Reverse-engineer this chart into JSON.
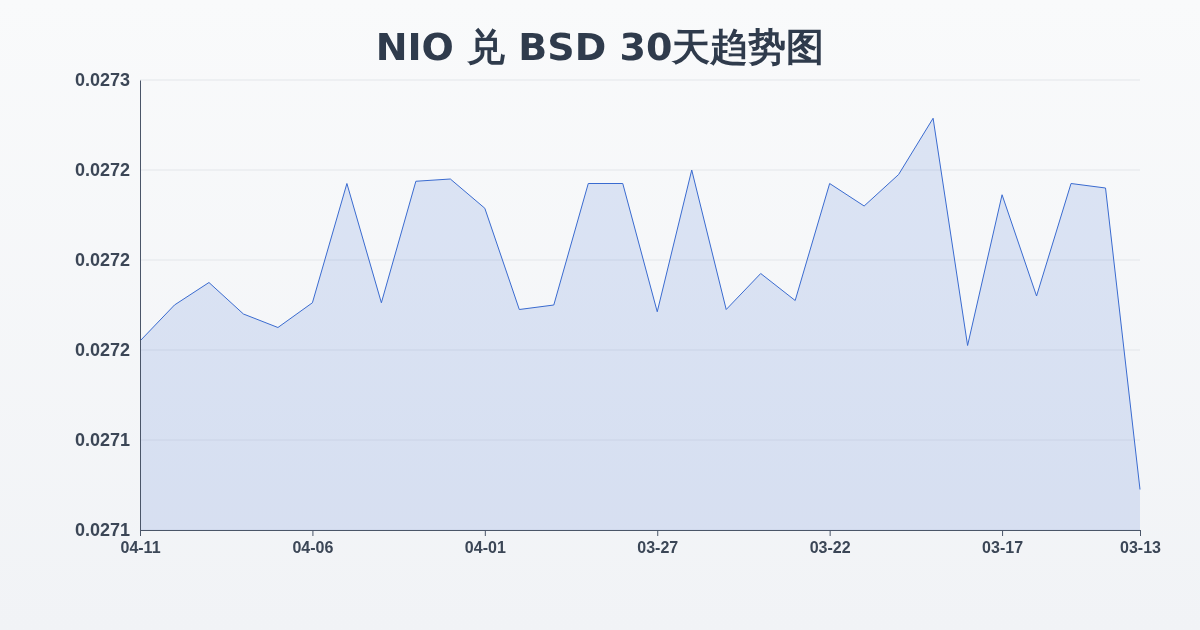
{
  "chart_data": {
    "type": "area",
    "title": "NIO 兑 BSD 30天趋势图",
    "x": [
      "--04-11",
      "--04-10",
      "--04-09",
      "--04-08",
      "--04-07",
      "--04-06",
      "--04-05",
      "--04-04",
      "--04-03",
      "--04-02",
      "--04-01",
      "--03-31",
      "--03-30",
      "--03-29",
      "--03-28",
      "--03-27",
      "--03-26",
      "--03-25",
      "--03-24",
      "--03-23",
      "--03-22",
      "--03-21",
      "--03-20",
      "--03-19",
      "--03-18",
      "--03-17",
      "--03-16",
      "--03-15",
      "--03-14",
      "--03-13"
    ],
    "series": [
      {
        "color": "#3a6bd0",
        "values": [
          0.027164,
          0.02718,
          0.02719,
          0.027176,
          0.02717,
          0.027181,
          0.027234,
          0.027181,
          0.027235,
          0.027236,
          0.027223,
          0.027178,
          0.02718,
          0.027234,
          0.027234,
          0.027177,
          0.02724,
          0.027178,
          0.027194,
          0.027182,
          0.027234,
          0.027224,
          0.027238,
          0.027263,
          0.027162,
          0.027229,
          0.027184,
          0.027234,
          0.027232,
          0.027098
        ]
      }
    ],
    "xlim": [
      "--04-11",
      "--03-13"
    ],
    "xticks": [
      {
        "value": "--04-11",
        "label": "04-11"
      },
      {
        "value": "--04-06",
        "label": "04-06"
      },
      {
        "value": "--04-01",
        "label": "04-01"
      },
      {
        "value": "--03-27",
        "label": "03-27"
      },
      {
        "value": "--03-22",
        "label": "03-22"
      },
      {
        "value": "--03-17",
        "label": "03-17"
      },
      {
        "value": "--03-13",
        "label": "03-13"
      }
    ],
    "ylim": [
      0.02708,
      0.02728
    ],
    "yticks": [
      {
        "value": 0.02708,
        "label": "0.0271"
      },
      {
        "value": 0.02712,
        "label": "0.0271"
      },
      {
        "value": 0.02716,
        "label": "0.0272"
      },
      {
        "value": 0.0272,
        "label": "0.0272"
      },
      {
        "value": 0.02724,
        "label": "0.0272"
      },
      {
        "value": 0.02728,
        "label": "0.0273"
      }
    ],
    "grid": "y"
  }
}
